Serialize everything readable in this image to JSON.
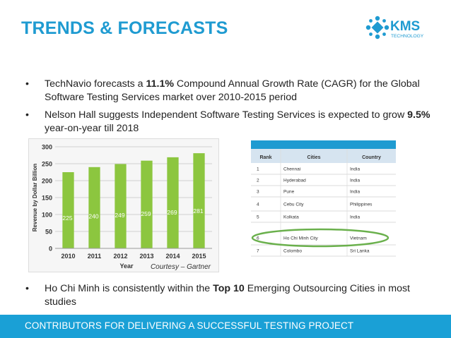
{
  "title": "TRENDS & FORECASTS",
  "logo": {
    "brand": "KMS",
    "sub": "TECHNOLOGY",
    "color": "#1f9bd1"
  },
  "bullets": [
    {
      "pre": "TechNavio forecasts a ",
      "bold": "11.1%",
      "post": " Compound Annual Growth Rate (CAGR) for the Global Software Testing Services market over 2010-2015 period"
    },
    {
      "pre": "Nelson Hall suggests Independent Software Testing Services is expected to grow ",
      "bold": "9.5%",
      "post": " year-on-year till 2018"
    },
    {
      "pre": "Ho Chi Minh is consistently within the ",
      "bold": "Top 10",
      "post": " Emerging Outsourcing Cities in most studies"
    }
  ],
  "bullet_symbol": "•",
  "chart_data": {
    "type": "bar",
    "categories": [
      "2010",
      "2011",
      "2012",
      "2013",
      "2014",
      "2015"
    ],
    "values": [
      225,
      240,
      249,
      259,
      269,
      281
    ],
    "ylim": [
      0,
      300
    ],
    "yticks": [
      0,
      50,
      100,
      150,
      200,
      250,
      300
    ],
    "xlabel": "Year",
    "ylabel": "Revenue by Dollar Billion",
    "annotation": "Courtesy – Gartner",
    "bar_color": "#8cc63f",
    "grid": true
  },
  "table": {
    "headers": [
      "Rank",
      "Cities",
      "Country"
    ],
    "rows": [
      [
        "1",
        "Chennai",
        "India"
      ],
      [
        "2",
        "Hyderabad",
        "India"
      ],
      [
        "3",
        "Pune",
        "India"
      ],
      [
        "4",
        "Cebu City",
        "Philippines"
      ],
      [
        "5",
        "Kolkata",
        "India"
      ],
      [
        "6",
        "Ho Chi Minh City",
        "Vietnam"
      ],
      [
        "7",
        "Colombo",
        "Sri Lanka"
      ]
    ],
    "highlight_row": 5,
    "header_color": "#1f9bd1",
    "highlight_color": "#6ab04c"
  },
  "footer": "CONTRIBUTORS FOR DELIVERING A SUCCESSFUL TESTING PROJECT"
}
